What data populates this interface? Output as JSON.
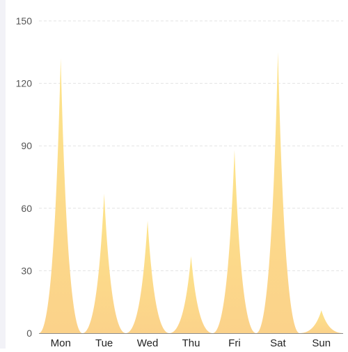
{
  "chart_data": {
    "type": "bar",
    "bar_shape": "pictorial-spike",
    "categories": [
      "Mon",
      "Tue",
      "Wed",
      "Thu",
      "Fri",
      "Sat",
      "Sun"
    ],
    "values": [
      132,
      67,
      54,
      37,
      88,
      135,
      11
    ],
    "ylim": [
      0,
      150
    ],
    "y_ticks": [
      0,
      30,
      60,
      90,
      120,
      150
    ],
    "y_tick_labels": [
      "0",
      "30",
      "60",
      "90",
      "120",
      "150"
    ],
    "grid": "horizontal-dashed",
    "colors": {
      "fill_top": "#fde48a",
      "fill_bottom": "#fbd28a",
      "grid": "#e3e3e3",
      "axis": "#8c8c8c",
      "label": "#555555",
      "category_label": "#222222"
    }
  }
}
